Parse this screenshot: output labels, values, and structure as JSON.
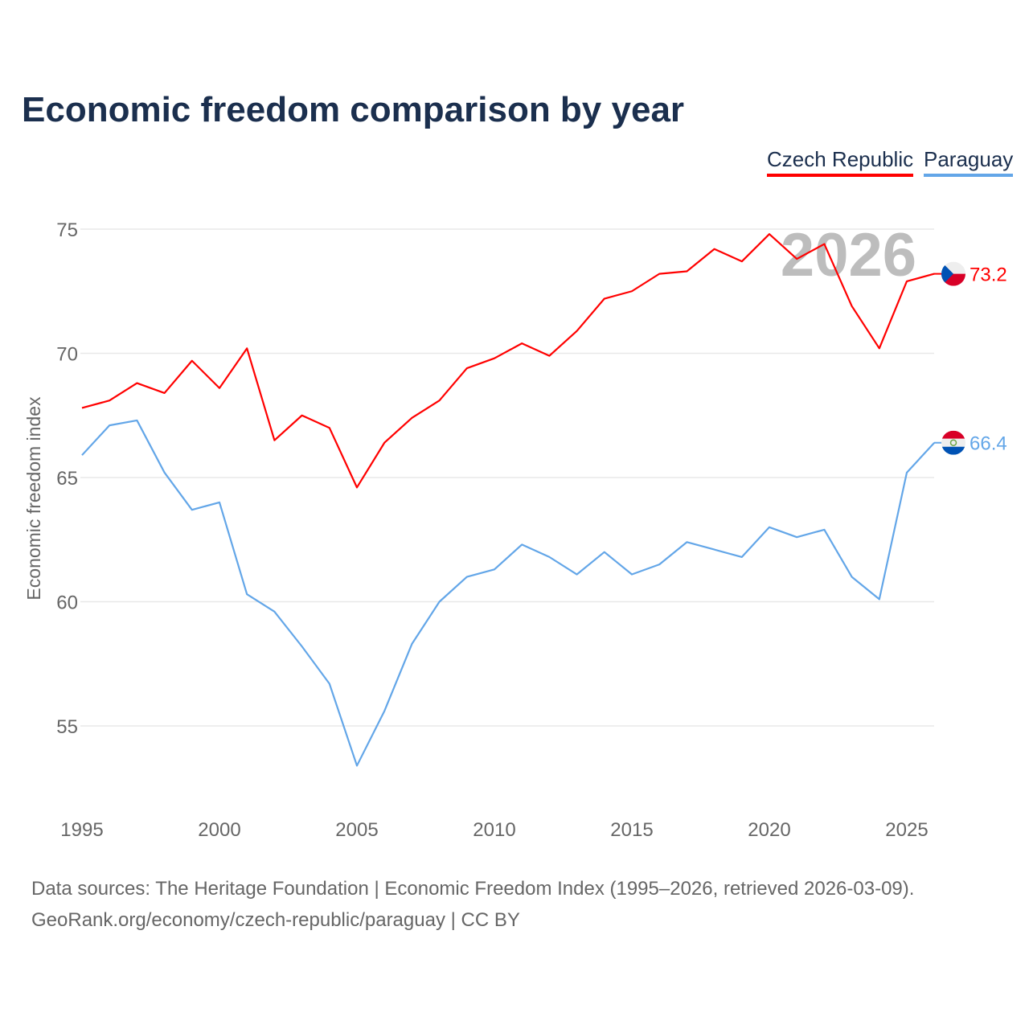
{
  "title": "Economic freedom comparison by year",
  "footer": {
    "line1": "Data sources: The Heritage Foundation | Economic Freedom Index (1995–2026, retrieved 2026-03-09).",
    "line2": "GeoRank.org/economy/czech-republic/paraguay | CC BY"
  },
  "chart_data": {
    "type": "line",
    "title": "Economic freedom comparison by year",
    "xlabel": "",
    "ylabel": "Economic freedom index",
    "xlim": [
      1995,
      2026
    ],
    "ylim": [
      52,
      77
    ],
    "yticks": [
      55,
      60,
      65,
      70,
      75
    ],
    "xticks": [
      1995,
      2000,
      2005,
      2010,
      2015,
      2020,
      2025
    ],
    "grid": true,
    "legend_position": "top-right",
    "watermark_year": "2026",
    "x": [
      1995,
      1996,
      1997,
      1998,
      1999,
      2000,
      2001,
      2002,
      2003,
      2004,
      2005,
      2006,
      2007,
      2008,
      2009,
      2010,
      2011,
      2012,
      2013,
      2014,
      2015,
      2016,
      2017,
      2018,
      2019,
      2020,
      2021,
      2022,
      2023,
      2024,
      2025,
      2026
    ],
    "series": [
      {
        "name": "Czech Republic",
        "color": "#ff0000",
        "flag": "czech-flag",
        "end_label": "73.2",
        "values": [
          67.8,
          68.1,
          68.8,
          68.4,
          69.7,
          68.6,
          70.2,
          66.5,
          67.5,
          67.0,
          64.6,
          66.4,
          67.4,
          68.1,
          69.4,
          69.8,
          70.4,
          69.9,
          70.9,
          72.2,
          72.5,
          73.2,
          73.3,
          74.2,
          73.7,
          74.8,
          73.8,
          74.4,
          71.9,
          70.2,
          72.9,
          73.2
        ]
      },
      {
        "name": "Paraguay",
        "color": "#63a6e8",
        "flag": "paraguay-flag",
        "end_label": "66.4",
        "values": [
          65.9,
          67.1,
          67.3,
          65.2,
          63.7,
          64.0,
          60.3,
          59.6,
          58.2,
          56.7,
          53.4,
          55.6,
          58.3,
          60.0,
          61.0,
          61.3,
          62.3,
          61.8,
          61.1,
          62.0,
          61.1,
          61.5,
          62.4,
          62.1,
          61.8,
          63.0,
          62.6,
          62.9,
          61.0,
          60.1,
          65.2,
          66.4
        ]
      }
    ]
  }
}
